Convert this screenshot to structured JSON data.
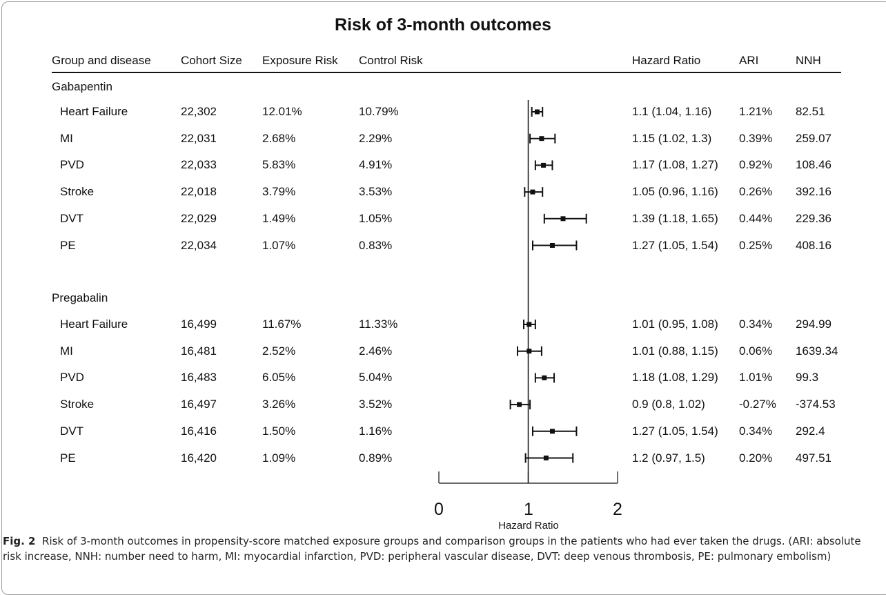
{
  "chart_data": {
    "type": "forest",
    "title": "Risk of 3-month outcomes",
    "columns": [
      "Group and disease",
      "Cohort Size",
      "Exposure Risk",
      "Control Risk",
      "Hazard Ratio",
      "ARI",
      "NNH"
    ],
    "xlabel": "Hazard Ratio",
    "xlim": [
      0,
      2
    ],
    "xticks": [
      "0",
      "1",
      "2"
    ],
    "reference_line": 1,
    "groups": [
      {
        "name": "Gabapentin",
        "rows": [
          {
            "disease": "Heart Failure",
            "cohort": "22,302",
            "exposure": "12.01%",
            "control": "10.79%",
            "hr_text": "1.1 (1.04, 1.16)",
            "ari": "1.21%",
            "nnh": "82.51",
            "hr": 1.1,
            "lo": 1.04,
            "hi": 1.16
          },
          {
            "disease": "MI",
            "cohort": "22,031",
            "exposure": "2.68%",
            "control": "2.29%",
            "hr_text": "1.15 (1.02, 1.3)",
            "ari": "0.39%",
            "nnh": "259.07",
            "hr": 1.15,
            "lo": 1.02,
            "hi": 1.3
          },
          {
            "disease": "PVD",
            "cohort": "22,033",
            "exposure": "5.83%",
            "control": "4.91%",
            "hr_text": "1.17 (1.08, 1.27)",
            "ari": "0.92%",
            "nnh": "108.46",
            "hr": 1.17,
            "lo": 1.08,
            "hi": 1.27
          },
          {
            "disease": "Stroke",
            "cohort": "22,018",
            "exposure": "3.79%",
            "control": "3.53%",
            "hr_text": "1.05 (0.96, 1.16)",
            "ari": "0.26%",
            "nnh": "392.16",
            "hr": 1.05,
            "lo": 0.96,
            "hi": 1.16
          },
          {
            "disease": "DVT",
            "cohort": "22,029",
            "exposure": "1.49%",
            "control": "1.05%",
            "hr_text": "1.39 (1.18, 1.65)",
            "ari": "0.44%",
            "nnh": "229.36",
            "hr": 1.39,
            "lo": 1.18,
            "hi": 1.65
          },
          {
            "disease": "PE",
            "cohort": "22,034",
            "exposure": "1.07%",
            "control": "0.83%",
            "hr_text": "1.27 (1.05, 1.54)",
            "ari": "0.25%",
            "nnh": "408.16",
            "hr": 1.27,
            "lo": 1.05,
            "hi": 1.54
          }
        ]
      },
      {
        "name": "Pregabalin",
        "rows": [
          {
            "disease": "Heart Failure",
            "cohort": "16,499",
            "exposure": "11.67%",
            "control": "11.33%",
            "hr_text": "1.01 (0.95, 1.08)",
            "ari": "0.34%",
            "nnh": "294.99",
            "hr": 1.01,
            "lo": 0.95,
            "hi": 1.08
          },
          {
            "disease": "MI",
            "cohort": "16,481",
            "exposure": "2.52%",
            "control": "2.46%",
            "hr_text": "1.01 (0.88, 1.15)",
            "ari": "0.06%",
            "nnh": "1639.34",
            "hr": 1.01,
            "lo": 0.88,
            "hi": 1.15
          },
          {
            "disease": "PVD",
            "cohort": "16,483",
            "exposure": "6.05%",
            "control": "5.04%",
            "hr_text": "1.18 (1.08, 1.29)",
            "ari": "1.01%",
            "nnh": "99.3",
            "hr": 1.18,
            "lo": 1.08,
            "hi": 1.29
          },
          {
            "disease": "Stroke",
            "cohort": "16,497",
            "exposure": "3.26%",
            "control": "3.52%",
            "hr_text": "0.9 (0.8, 1.02)",
            "ari": "-0.27%",
            "nnh": "-374.53",
            "hr": 0.9,
            "lo": 0.8,
            "hi": 1.02
          },
          {
            "disease": "DVT",
            "cohort": "16,416",
            "exposure": "1.50%",
            "control": "1.16%",
            "hr_text": "1.27 (1.05, 1.54)",
            "ari": "0.34%",
            "nnh": "292.4",
            "hr": 1.27,
            "lo": 1.05,
            "hi": 1.54
          },
          {
            "disease": "PE",
            "cohort": "16,420",
            "exposure": "1.09%",
            "control": "0.89%",
            "hr_text": "1.2 (0.97, 1.5)",
            "ari": "0.20%",
            "nnh": "497.51",
            "hr": 1.2,
            "lo": 0.97,
            "hi": 1.5
          }
        ]
      }
    ]
  },
  "caption": {
    "label": "Fig. 2",
    "text": "Risk of 3-month outcomes in propensity-score matched exposure groups and comparison groups in the patients who had ever taken the drugs. (ARI: absolute risk increase, NNH: number need to harm, MI: myocardial infarction, PVD: peripheral vascular disease, DVT: deep venous thrombosis, PE: pulmonary embolism)"
  }
}
